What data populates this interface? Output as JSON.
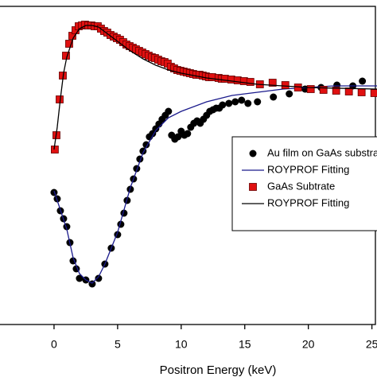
{
  "chart_data": {
    "type": "scatter",
    "x_label": "Positron Energy (keV)",
    "xlim": [
      -4.25,
      25.4
    ],
    "xticks": [
      0,
      5,
      10,
      15,
      20,
      25
    ],
    "ylim": [
      0,
      100
    ],
    "legend": "right",
    "series": [
      {
        "name": "Au film on GaAs substrate",
        "color": "#000000",
        "kind": "scatter",
        "marker": "circle",
        "x": [
          0,
          0.25,
          0.5,
          0.75,
          1,
          1.25,
          1.5,
          1.75,
          2,
          2.5,
          3,
          3.5,
          4,
          4.5,
          5,
          5.25,
          5.5,
          5.75,
          6,
          6.25,
          6.5,
          6.75,
          7,
          7.25,
          7.5,
          7.75,
          8,
          8.25,
          8.5,
          8.75,
          9,
          9.25,
          9.5,
          9.75,
          10,
          10.25,
          10.5,
          10.75,
          11,
          11.25,
          11.5,
          11.75,
          12,
          12.25,
          12.5,
          12.75,
          13,
          13.25,
          13.75,
          14.25,
          14.75,
          15.25,
          16,
          17.25,
          18.5,
          19.75,
          21,
          22.25,
          23.5,
          24.25
        ],
        "values": [
          41.5,
          39.5,
          35.75,
          33.25,
          30.75,
          25.75,
          20,
          17.5,
          14.5,
          14,
          12.75,
          14.5,
          19,
          24,
          28.25,
          31.5,
          35,
          39,
          42.5,
          45.75,
          49,
          52,
          54.5,
          56.5,
          59,
          60,
          61.5,
          63,
          64.5,
          65.75,
          67,
          59.5,
          58.25,
          59,
          60.75,
          59.5,
          60,
          62,
          63.25,
          64,
          63.25,
          64.5,
          65.75,
          67,
          67.5,
          68,
          68,
          69,
          69.5,
          70,
          70.5,
          69.5,
          70,
          71.5,
          72.5,
          74,
          74.5,
          75.25,
          75,
          76.5
        ]
      },
      {
        "name": "ROYPROF Fitting",
        "color": "#1a1a8c",
        "kind": "line",
        "x": [
          0,
          0.5,
          1,
          1.5,
          2,
          2.5,
          3,
          3.5,
          4,
          4.5,
          5,
          6,
          7,
          8,
          9,
          10,
          12,
          14,
          16,
          18,
          20,
          22,
          25.4
        ],
        "values": [
          42,
          36,
          30,
          21,
          16,
          14,
          13,
          15,
          19,
          24,
          29,
          43,
          54,
          61,
          65,
          67,
          70,
          72,
          73,
          74,
          74.5,
          75,
          75
        ]
      },
      {
        "name": "GaAs Subtrate",
        "color": "#e01010",
        "kind": "scatter",
        "marker": "square",
        "x": [
          0.06,
          0.19,
          0.44,
          0.69,
          0.94,
          1.19,
          1.44,
          1.69,
          1.94,
          2.19,
          2.44,
          2.69,
          2.94,
          3.19,
          3.44,
          3.69,
          3.94,
          4.19,
          4.44,
          4.69,
          4.94,
          5.19,
          5.44,
          5.69,
          5.94,
          6.19,
          6.44,
          6.69,
          6.94,
          7.19,
          7.44,
          7.69,
          7.94,
          8.19,
          8.44,
          8.69,
          8.94,
          9.19,
          9.44,
          9.69,
          9.94,
          10.19,
          10.44,
          10.69,
          10.94,
          11.19,
          11.44,
          11.69,
          11.94,
          12.19,
          12.44,
          12.94,
          13.19,
          13.44,
          13.94,
          14.44,
          14.94,
          15.44,
          16.19,
          17.19,
          18.19,
          19.19,
          20.19,
          21.19,
          22.19,
          23.19,
          24.19,
          25.19
        ],
        "values": [
          55,
          59.5,
          70.75,
          78.25,
          84.5,
          88.25,
          90.75,
          92.5,
          93.75,
          94,
          94.25,
          94,
          94,
          93.75,
          93.75,
          93,
          92.25,
          91.75,
          91,
          90.5,
          90,
          89.5,
          88.75,
          88,
          87.5,
          87,
          86.5,
          86,
          85.5,
          85,
          84.5,
          84,
          83.75,
          83.25,
          82.75,
          82.5,
          82,
          81,
          80.5,
          80,
          79.75,
          79.5,
          79.25,
          79,
          78.75,
          78.5,
          78.5,
          78.25,
          78,
          77.75,
          77.75,
          77.5,
          77.25,
          77.25,
          77,
          76.75,
          76.5,
          76.25,
          75.5,
          76,
          75.25,
          74.5,
          74,
          73.75,
          73.5,
          73.25,
          73,
          72.75
        ]
      },
      {
        "name": "ROYPROF Fitting",
        "color": "#000000",
        "kind": "line",
        "x": [
          0,
          0.25,
          0.5,
          0.75,
          1,
          1.5,
          2,
          2.5,
          3,
          3.5,
          4,
          5,
          6,
          7,
          8,
          9,
          10,
          12,
          14,
          16,
          18,
          20,
          22,
          25.4
        ],
        "values": [
          55,
          62,
          71,
          79,
          84,
          90,
          93,
          94,
          94,
          93.5,
          92,
          89,
          86,
          83.5,
          81.5,
          80,
          79,
          77.5,
          76.5,
          75.5,
          75,
          74.5,
          74.3,
          74
        ]
      }
    ]
  }
}
